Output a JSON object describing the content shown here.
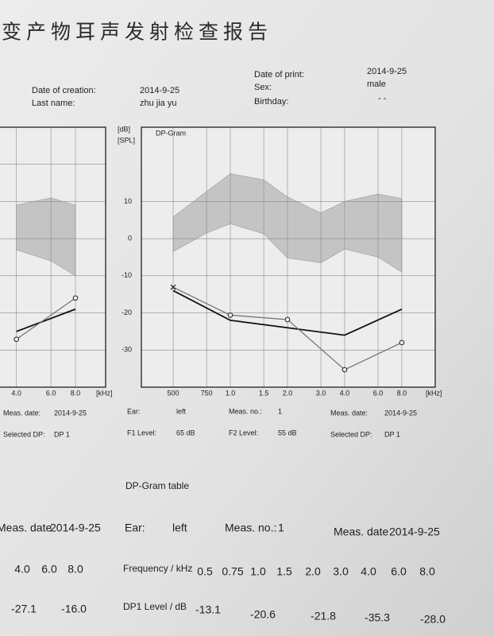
{
  "title": "变产物耳声发射检查报告",
  "info": [
    {
      "label": "Date of creation:",
      "value": "2014-9-25"
    },
    {
      "label": "Last name:",
      "value": "zhu jia yu"
    },
    {
      "label": "Date of print:",
      "value": "2014-9-25"
    },
    {
      "label": "Sex:",
      "value": "male"
    },
    {
      "label": "Birthday:",
      "value": "- -"
    }
  ],
  "charts": [
    {
      "type": "line",
      "x_label": "[kHz]",
      "xscale": "log",
      "xlim": [
        3.3,
        11.4
      ],
      "ylim": [
        -40,
        30
      ],
      "xticks": [
        {
          "value": 4,
          "label": "4.0"
        },
        {
          "value": 6,
          "label": "6.0"
        },
        {
          "value": 8,
          "label": "8.0"
        }
      ],
      "yticks": [
        -30,
        -20,
        -10,
        0,
        10,
        20
      ],
      "show_ytick_labels": false,
      "grid": true,
      "band": {
        "x": [
          4,
          6,
          8
        ],
        "upper": [
          9,
          11,
          9
        ],
        "lower": [
          -3,
          -6,
          -10
        ],
        "color": "#c4c4c4"
      },
      "series": [
        {
          "x": [
            4,
            8
          ],
          "values": [
            -25,
            -19
          ],
          "color": "#111111",
          "markers": false
        },
        {
          "x": [
            4,
            8
          ],
          "values": [
            -27.1,
            -16.0
          ],
          "color": "#6f6f6f",
          "markers": [
            "circle",
            "circle"
          ]
        }
      ]
    },
    {
      "type": "line",
      "title": "DP-Gram",
      "y_label": [
        "[dB]",
        "[SPL]"
      ],
      "x_label": "[kHz]",
      "xscale": "log",
      "xlim": [
        0.34,
        12
      ],
      "ylim": [
        -40,
        30
      ],
      "xticks": [
        {
          "value": 0.5,
          "label": "500"
        },
        {
          "value": 0.75,
          "label": "750"
        },
        {
          "value": 1,
          "label": "1.0"
        },
        1.5,
        {
          "value": 2,
          "label": "2.0"
        },
        {
          "value": 3,
          "label": "3.0"
        },
        {
          "value": 4,
          "label": "4.0"
        },
        {
          "value": 6,
          "label": "6.0"
        },
        {
          "value": 8,
          "label": "8.0"
        }
      ],
      "yticks": [
        -30,
        -20,
        -10,
        0,
        10
      ],
      "show_ytick_labels": true,
      "grid": true,
      "band": {
        "x": [
          0.5,
          0.75,
          1,
          1.5,
          2,
          3,
          4,
          6,
          8
        ],
        "upper": [
          5.8,
          12.7,
          17.5,
          15.8,
          11.2,
          6.9,
          10,
          12,
          10.8
        ],
        "lower": [
          -3.5,
          1.5,
          4,
          1.3,
          -5.2,
          -6.5,
          -2.8,
          -5,
          -9
        ],
        "color": "#c4c4c4"
      },
      "series": [
        {
          "x": [
            0.5,
            1,
            2,
            4,
            8
          ],
          "values": [
            -14,
            -22,
            -24,
            -26,
            -19
          ],
          "color": "#111111",
          "markers": false
        },
        {
          "x": [
            0.5,
            1,
            2,
            4,
            8
          ],
          "values": [
            -13.1,
            -20.6,
            -21.8,
            -35.3,
            -28.0
          ],
          "color": "#6f6f6f",
          "markers": [
            "x",
            "circle",
            "circle",
            "circle",
            "circle"
          ]
        }
      ]
    }
  ],
  "meas": {
    "left": [
      {
        "label": "Meas. date:",
        "value": "2014-9-25"
      },
      {
        "label": "Selected DP:",
        "value": "DP 1"
      }
    ],
    "right": [
      {
        "label": "Ear:",
        "value": "left"
      },
      {
        "label": "Meas. no.:",
        "value": "1"
      },
      {
        "label": "Meas. date:",
        "value": "2014-9-25"
      },
      {
        "label": "F1 Level:",
        "value": "65 dB"
      },
      {
        "label": "F2 Level:",
        "value": "55 dB"
      },
      {
        "label": "Selected DP:",
        "value": "DP 1"
      }
    ]
  },
  "table": {
    "title": "DP-Gram table",
    "left": {
      "meas_date_label": "Meas. date",
      "meas_date": "2014-9-25",
      "frequencies": [
        "4.0",
        "6.0",
        "8.0"
      ],
      "dp1_levels": [
        "-27.1",
        null,
        "-16.0"
      ]
    },
    "right": {
      "ear_label": "Ear:",
      "ear": "left",
      "meas_no_label": "Meas. no.:",
      "meas_no": "1",
      "meas_date_label": "Meas. date",
      "meas_date": "2014-9-25",
      "frequency_label": "Frequency / kHz",
      "frequencies": [
        "0.5",
        "0.75",
        "1.0",
        "1.5",
        "2.0",
        "3.0",
        "4.0",
        "6.0",
        "8.0"
      ],
      "dp1_label": "DP1 Level / dB",
      "dp1_levels": [
        "-13.1",
        null,
        "-20.6",
        null,
        "-21.8",
        null,
        "-35.3",
        null,
        "-28.0"
      ]
    }
  }
}
